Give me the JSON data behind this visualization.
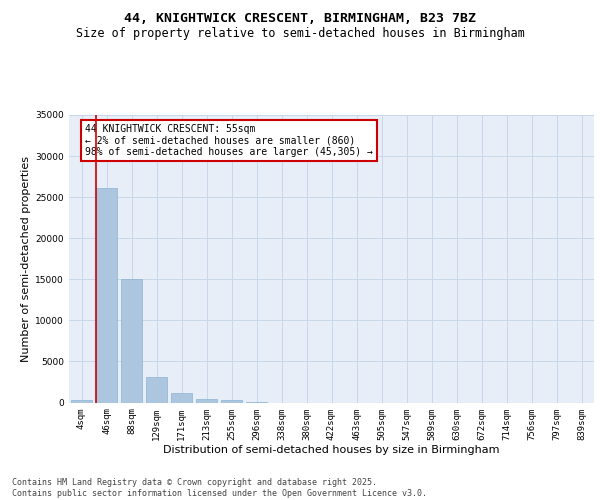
{
  "title_line1": "44, KNIGHTWICK CRESCENT, BIRMINGHAM, B23 7BZ",
  "title_line2": "Size of property relative to semi-detached houses in Birmingham",
  "xlabel": "Distribution of semi-detached houses by size in Birmingham",
  "ylabel": "Number of semi-detached properties",
  "categories": [
    "4sqm",
    "46sqm",
    "88sqm",
    "129sqm",
    "171sqm",
    "213sqm",
    "255sqm",
    "296sqm",
    "338sqm",
    "380sqm",
    "422sqm",
    "463sqm",
    "505sqm",
    "547sqm",
    "589sqm",
    "630sqm",
    "672sqm",
    "714sqm",
    "756sqm",
    "797sqm",
    "839sqm"
  ],
  "values": [
    350,
    26100,
    15000,
    3100,
    1200,
    450,
    250,
    100,
    0,
    0,
    0,
    0,
    0,
    0,
    0,
    0,
    0,
    0,
    0,
    0,
    0
  ],
  "ylim": [
    0,
    35000
  ],
  "yticks": [
    0,
    5000,
    10000,
    15000,
    20000,
    25000,
    30000,
    35000
  ],
  "bar_color": "#adc6e0",
  "bar_edge_color": "#8ab4d4",
  "grid_color": "#c8d8ea",
  "bg_color": "#e8eef8",
  "vline_color": "#cc0000",
  "annotation_text": "44 KNIGHTWICK CRESCENT: 55sqm\n← 2% of semi-detached houses are smaller (860)\n98% of semi-detached houses are larger (45,305) →",
  "annotation_box_color": "#cc0000",
  "footer_text": "Contains HM Land Registry data © Crown copyright and database right 2025.\nContains public sector information licensed under the Open Government Licence v3.0.",
  "title_fontsize": 9.5,
  "subtitle_fontsize": 8.5,
  "axis_label_fontsize": 8,
  "tick_fontsize": 6.5,
  "footer_fontsize": 6,
  "annotation_fontsize": 7
}
